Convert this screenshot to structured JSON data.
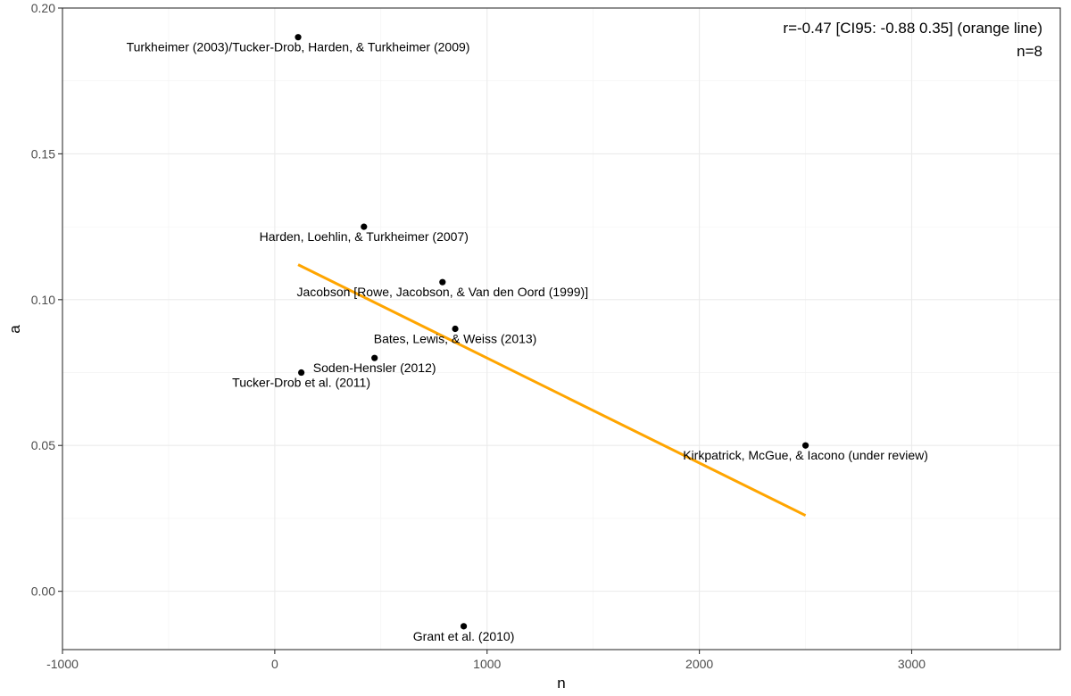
{
  "chart_data": {
    "type": "scatter",
    "title": "",
    "xlabel": "n",
    "ylabel": "a",
    "xlim": [
      -1000,
      3700
    ],
    "ylim": [
      -0.02,
      0.2
    ],
    "x_ticks": [
      -1000,
      0,
      1000,
      2000,
      3000
    ],
    "x_tick_labels": [
      "-1000",
      "0",
      "1000",
      "2000",
      "3000"
    ],
    "y_ticks": [
      0.0,
      0.05,
      0.1,
      0.15,
      0.2
    ],
    "y_tick_labels": [
      "0.00",
      "0.05",
      "0.10",
      "0.15",
      "0.20"
    ],
    "grid": true,
    "points": [
      {
        "x": 110,
        "y": 0.19,
        "label": "Turkheimer (2003)/Tucker-Drob, Harden, & Turkheimer (2009)"
      },
      {
        "x": 420,
        "y": 0.125,
        "label": "Harden, Loehlin, & Turkheimer (2007)"
      },
      {
        "x": 790,
        "y": 0.106,
        "label": "Jacobson [Rowe, Jacobson, & Van den Oord (1999)]"
      },
      {
        "x": 850,
        "y": 0.09,
        "label": "Bates, Lewis, & Weiss (2013)"
      },
      {
        "x": 470,
        "y": 0.08,
        "label": "Soden-Hensler (2012)"
      },
      {
        "x": 125,
        "y": 0.075,
        "label": "Tucker-Drob et al. (2011)"
      },
      {
        "x": 2500,
        "y": 0.05,
        "label": "Kirkpatrick, McGue, & Iacono (under review)"
      },
      {
        "x": 890,
        "y": -0.012,
        "label": "Grant et al. (2010)"
      }
    ],
    "fit_line": {
      "x": [
        110,
        2500
      ],
      "y": [
        0.112,
        0.026
      ],
      "color": "#FFA500"
    },
    "annotations": [
      "r=-0.47 [CI95: -0.88 0.35] (orange line)",
      "n=8"
    ]
  }
}
